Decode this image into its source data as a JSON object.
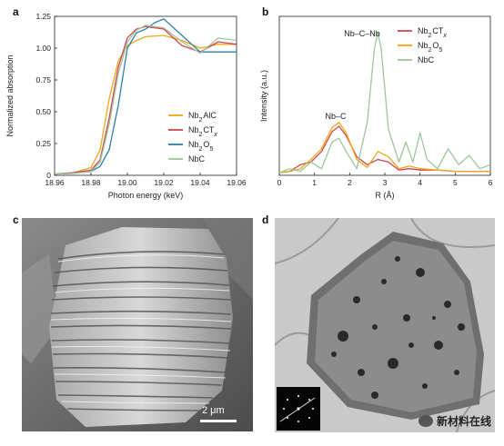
{
  "panels": {
    "a": "a",
    "b": "b",
    "c": "c",
    "d": "d"
  },
  "scale_bar": "2 μm",
  "watermark": "新材料在线",
  "colors": {
    "Nb2AlC": "#f2a51a",
    "Nb2CTx": "#d0454e",
    "Nb2O5": "#2f7fa6",
    "NbC": "#9dc79a"
  },
  "chart_data": [
    {
      "type": "line",
      "panel": "a",
      "xlabel": "Photon energy (keV)",
      "ylabel": "Normalized absorption",
      "xlim": [
        18.96,
        19.06
      ],
      "ylim": [
        0,
        1.25
      ],
      "xticks": [
        "18.96",
        "18.98",
        "19.00",
        "19.02",
        "19.04",
        "19.06"
      ],
      "yticks": [
        "0",
        "0.25",
        "0.50",
        "0.75",
        "1.00",
        "1.25"
      ],
      "legend": [
        "Nb2AlC",
        "Nb2CTx",
        "Nb2O5",
        "NbC"
      ],
      "legend_placement": "bottom-right",
      "series": [
        {
          "name": "Nb2AlC",
          "color": "#f2a51a",
          "x": [
            18.96,
            18.97,
            18.98,
            18.985,
            18.99,
            18.995,
            19.0,
            19.005,
            19.01,
            19.02,
            19.03,
            19.04,
            19.05,
            19.06
          ],
          "y": [
            0.01,
            0.02,
            0.06,
            0.2,
            0.6,
            0.9,
            1.02,
            1.06,
            1.09,
            1.1,
            1.06,
            1.0,
            1.03,
            1.03
          ]
        },
        {
          "name": "Nb2CTx",
          "color": "#d0454e",
          "x": [
            18.96,
            18.97,
            18.98,
            18.985,
            18.99,
            18.995,
            19.0,
            19.005,
            19.01,
            19.02,
            19.03,
            19.04,
            19.05,
            19.06
          ],
          "y": [
            0.01,
            0.02,
            0.04,
            0.12,
            0.45,
            0.85,
            1.08,
            1.15,
            1.17,
            1.15,
            1.02,
            0.97,
            1.05,
            1.03
          ]
        },
        {
          "name": "Nb2O5",
          "color": "#2f7fa6",
          "x": [
            18.96,
            18.97,
            18.98,
            18.985,
            18.99,
            18.995,
            19.0,
            19.005,
            19.01,
            19.015,
            19.02,
            19.03,
            19.04,
            19.05,
            19.06
          ],
          "y": [
            0.01,
            0.015,
            0.03,
            0.07,
            0.2,
            0.55,
            1.0,
            1.12,
            1.15,
            1.2,
            1.23,
            1.1,
            0.97,
            0.97,
            0.97
          ]
        },
        {
          "name": "NbC",
          "color": "#9dc79a",
          "x": [
            18.96,
            18.97,
            18.98,
            18.985,
            18.99,
            18.995,
            19.0,
            19.005,
            19.01,
            19.02,
            19.03,
            19.04,
            19.05,
            19.06
          ],
          "y": [
            0.01,
            0.015,
            0.03,
            0.1,
            0.4,
            0.8,
            1.05,
            1.14,
            1.18,
            1.16,
            1.05,
            0.96,
            1.08,
            1.06
          ]
        }
      ]
    },
    {
      "type": "line",
      "panel": "b",
      "xlabel": "R (Å)",
      "ylabel": "Intensity (a.u.)",
      "xlim": [
        0,
        6
      ],
      "xticks": [
        "0",
        "1",
        "2",
        "3",
        "4",
        "5",
        "6"
      ],
      "legend": [
        "Nb2CTx",
        "Nb2O5",
        "NbC"
      ],
      "legend_placement": "top-right",
      "annotations": [
        "Nb–C",
        "Nb–C–Nb"
      ],
      "series": [
        {
          "name": "Nb2CTx",
          "color": "#d0454e",
          "x": [
            0,
            0.3,
            0.6,
            0.9,
            1.2,
            1.5,
            1.7,
            1.9,
            2.2,
            2.5,
            2.8,
            3.1,
            3.4,
            3.7,
            4.0,
            4.5,
            5.0,
            5.5,
            6.0
          ],
          "y": [
            0.02,
            0.03,
            0.08,
            0.1,
            0.18,
            0.33,
            0.37,
            0.3,
            0.14,
            0.08,
            0.12,
            0.1,
            0.04,
            0.05,
            0.04,
            0.04,
            0.03,
            0.03,
            0.03
          ]
        },
        {
          "name": "Nb2O5",
          "color": "#f2a51a",
          "x": [
            0,
            0.3,
            0.6,
            0.9,
            1.2,
            1.5,
            1.7,
            1.9,
            2.2,
            2.5,
            2.8,
            3.1,
            3.4,
            3.7,
            4.0,
            4.5,
            5.0,
            5.5,
            6.0
          ],
          "y": [
            0.02,
            0.03,
            0.05,
            0.12,
            0.2,
            0.36,
            0.4,
            0.32,
            0.12,
            0.06,
            0.18,
            0.14,
            0.05,
            0.07,
            0.05,
            0.04,
            0.03,
            0.03,
            0.03
          ]
        },
        {
          "name": "NbC",
          "color": "#9dc79a",
          "x": [
            0,
            0.3,
            0.6,
            0.9,
            1.2,
            1.5,
            1.7,
            1.9,
            2.2,
            2.5,
            2.7,
            2.8,
            2.9,
            3.1,
            3.4,
            3.6,
            3.8,
            4.0,
            4.2,
            4.5,
            4.8,
            5.1,
            5.4,
            5.7,
            6.0
          ],
          "y": [
            0.02,
            0.05,
            0.03,
            0.1,
            0.05,
            0.25,
            0.28,
            0.18,
            0.05,
            0.4,
            0.95,
            1.08,
            0.95,
            0.35,
            0.1,
            0.25,
            0.1,
            0.32,
            0.12,
            0.05,
            0.2,
            0.08,
            0.15,
            0.05,
            0.08
          ]
        }
      ]
    }
  ]
}
